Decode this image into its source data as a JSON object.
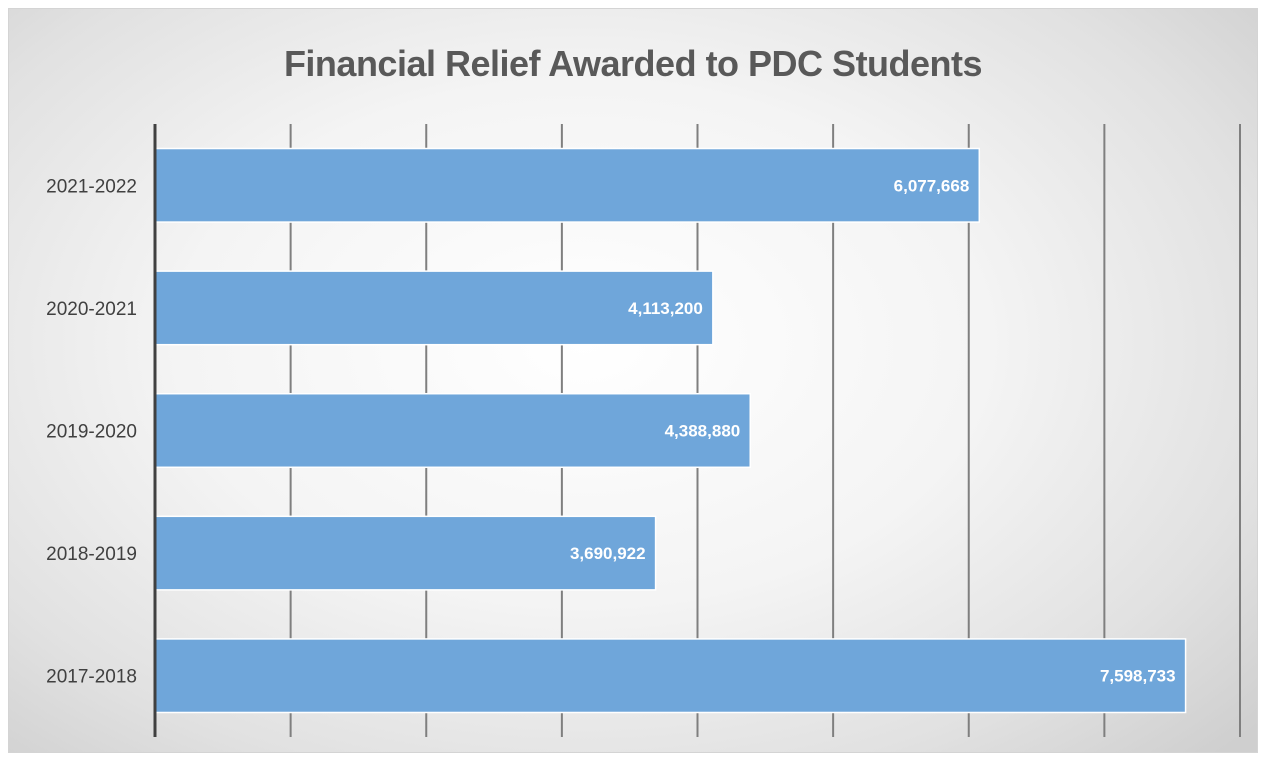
{
  "chart_data": {
    "type": "bar",
    "orientation": "horizontal",
    "title": "Financial Relief Awarded to PDC Students",
    "xlabel": "",
    "ylabel": "",
    "categories": [
      "2021-2022",
      "2020-2021",
      "2019-2020",
      "2018-2019",
      "2017-2018"
    ],
    "values": [
      6077668,
      4113200,
      4388880,
      3690922,
      7598733
    ],
    "data_labels": [
      "6,077,668",
      "4,113,200",
      "4,388,880",
      "3,690,922",
      "7,598,733"
    ],
    "xlim": [
      0,
      8000000
    ],
    "grid": true,
    "x_tick_labels_visible": false,
    "legend": "none",
    "colors": {
      "bar": "#6fa6da",
      "bar_border": "#ffffff",
      "grid": "#7f7f7f",
      "axis": "#404040",
      "title": "#595959"
    }
  }
}
